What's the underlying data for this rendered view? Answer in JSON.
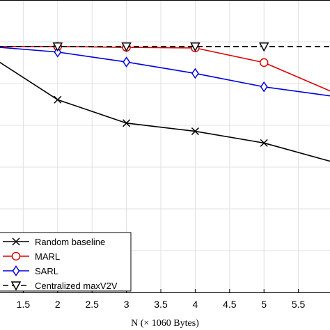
{
  "chart_data": {
    "type": "line",
    "xlabel": "N (× 1060 Bytes)",
    "ylabel": "",
    "title": "",
    "xlim": [
      1.0,
      6.0
    ],
    "ylim": [
      0.0,
      1.0
    ],
    "x_ticks": [
      1.5,
      2,
      2.5,
      3,
      3.5,
      4,
      4.5,
      5,
      5.5
    ],
    "x_tick_labels": [
      "1.5",
      "2",
      "2.5",
      "3",
      "3.5",
      "4",
      "4.5",
      "5",
      "5.5"
    ],
    "y_grid": [
      0.1429,
      0.2857,
      0.4286,
      0.5714,
      0.7143,
      0.8571
    ],
    "grid": true,
    "legend_position": "bottom-left",
    "series": [
      {
        "name": "Random baseline",
        "color": "#000000",
        "marker": "x",
        "dash": "solid",
        "x": [
          1,
          2,
          3,
          4,
          5,
          6
        ],
        "y": [
          0.811,
          0.659,
          0.579,
          0.551,
          0.511,
          0.446
        ]
      },
      {
        "name": "MARL",
        "color": "#dd0000",
        "marker": "o",
        "dash": "solid",
        "x": [
          1,
          2,
          3,
          4,
          5,
          6
        ],
        "y": [
          0.841,
          0.841,
          0.838,
          0.836,
          0.786,
          0.685
        ]
      },
      {
        "name": "SARL",
        "color": "#0000dd",
        "marker": "diamond",
        "dash": "solid",
        "x": [
          1,
          2,
          3,
          4,
          5,
          6
        ],
        "y": [
          0.841,
          0.822,
          0.788,
          0.749,
          0.703,
          0.671
        ]
      },
      {
        "name": "Centralized maxV2V",
        "color": "#000000",
        "marker": "triangle-down",
        "dash": "dashed",
        "x": [
          1,
          2,
          3,
          4,
          5,
          6
        ],
        "y": [
          0.841,
          0.841,
          0.841,
          0.841,
          0.841,
          0.841
        ]
      }
    ]
  }
}
